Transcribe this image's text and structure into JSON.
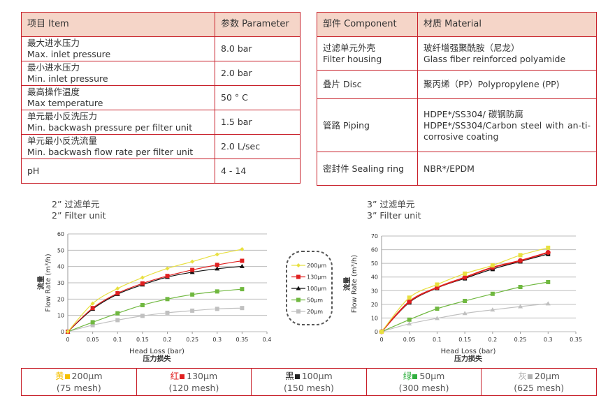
{
  "spec_table": {
    "headers": [
      "项目 Item",
      "参数 Parameter"
    ],
    "rows": [
      {
        "zh": "最大进水压力",
        "en": "Max. inlet pressure",
        "value": "8.0 bar"
      },
      {
        "zh": "最小进水压力",
        "en": "Min. inlet pressure",
        "value": "2.0 bar"
      },
      {
        "zh": "最高操作温度",
        "en": "Max temperature",
        "value": "50 ° C"
      },
      {
        "zh": "单元最小反洗压力",
        "en": "Min. backwash pressure per filter unit",
        "value": "1.5 bar"
      },
      {
        "zh": "单元最小反洗流量",
        "en": "Min. backwash flow rate per filter unit",
        "value": "2.0 L/sec"
      },
      {
        "zh": "",
        "en": "pH",
        "value": "4 - 14"
      }
    ]
  },
  "material_table": {
    "headers": [
      "部件 Component",
      "材质 Material"
    ],
    "rows": [
      {
        "component": [
          "过滤单元外壳",
          "Filter housing"
        ],
        "material": [
          "玻纤增强聚酰胺（尼龙）",
          "Glass fiber reinforced polyamide"
        ]
      },
      {
        "component": [
          "叠片 Disc"
        ],
        "material": [
          "聚丙烯（PP）Polypropylene (PP)"
        ]
      },
      {
        "component": [
          "管路 Piping"
        ],
        "material": [
          "HDPE*/SS304/ 碳钢防腐",
          "HDPE*/SS304/Carbon steel with an-ti-corrosive coating"
        ]
      },
      {
        "component": [
          "密封件 Sealing ring"
        ],
        "material": [
          "NBR*/EPDM"
        ]
      }
    ]
  },
  "legend": {
    "items": [
      "200μm",
      "130μm",
      "100μm",
      "50μm",
      "20μm"
    ],
    "colors": [
      "#e8e040",
      "#e02020",
      "#111111",
      "#70b840",
      "#c0c0c0"
    ]
  },
  "chart_data": [
    {
      "type": "line",
      "title_zh": "2” 过滤单元",
      "title_en": "2” Filter unit",
      "ylabel_zh": "流量",
      "ylabel_en": "Flow Rate (m³/h)",
      "xlabel_en": "Head Loss (bar)",
      "xlabel_zh": "压力损失",
      "xlim": [
        0,
        0.4
      ],
      "ylim": [
        0,
        60
      ],
      "xticks": [
        0,
        0.05,
        0.1,
        0.15,
        0.2,
        0.25,
        0.3,
        0.35,
        0.4
      ],
      "yticks": [
        0,
        10,
        20,
        30,
        40,
        50,
        60
      ],
      "grid": "horizontal",
      "x": [
        0,
        0.05,
        0.1,
        0.15,
        0.2,
        0.25,
        0.3,
        0.35
      ],
      "series": [
        {
          "name": "200μm",
          "color": "#e8e040",
          "marker": "diamond",
          "values": [
            0,
            17.3,
            26.5,
            33.2,
            38.8,
            43,
            47.4,
            50.6
          ]
        },
        {
          "name": "130μm",
          "color": "#e02020",
          "marker": "square",
          "values": [
            0,
            14.5,
            23.6,
            29.6,
            34.2,
            37.9,
            41,
            43.5
          ]
        },
        {
          "name": "100μm",
          "color": "#111111",
          "marker": "triangle",
          "values": [
            0,
            13.9,
            23,
            28.8,
            33.5,
            36.5,
            38.6,
            40.1
          ]
        },
        {
          "name": "50μm",
          "color": "#70b840",
          "marker": "square",
          "values": [
            0,
            5.8,
            11.3,
            16.3,
            20,
            22.8,
            24.7,
            26.1
          ]
        },
        {
          "name": "20μm",
          "color": "#c0c0c0",
          "marker": "square",
          "values": [
            0,
            4,
            7.1,
            9.7,
            11.6,
            12.9,
            14,
            14.5
          ]
        }
      ]
    },
    {
      "type": "line",
      "title_zh": "3” 过滤单元",
      "title_en": "3” Filter unit",
      "ylabel_zh": "流量",
      "ylabel_en": "Flow Rate (m³/h)",
      "xlabel_en": "Head Loss (bar)",
      "xlabel_zh": "压力损失",
      "xlim": [
        0,
        0.35
      ],
      "ylim": [
        0,
        70
      ],
      "xticks": [
        0,
        0.05,
        0.1,
        0.15,
        0.2,
        0.25,
        0.3,
        0.35
      ],
      "yticks": [
        0,
        10,
        20,
        30,
        40,
        50,
        60,
        70
      ],
      "grid": "horizontal",
      "x": [
        0,
        0.05,
        0.1,
        0.15,
        0.2,
        0.25,
        0.3
      ],
      "series": [
        {
          "name": "200μm",
          "color": "#e8e040",
          "marker": "square",
          "values": [
            0,
            24.9,
            34.5,
            42.5,
            48.5,
            56,
            61.4
          ]
        },
        {
          "name": "130μm",
          "color": "#e02020",
          "marker": "circle",
          "values": [
            0,
            22,
            32.3,
            39.7,
            47,
            52,
            58
          ]
        },
        {
          "name": "100μm",
          "color": "#111111",
          "marker": "square",
          "values": [
            0,
            21.4,
            32,
            39,
            45.8,
            51.4,
            56.8
          ]
        },
        {
          "name": "50μm",
          "color": "#70b840",
          "marker": "square",
          "values": [
            0,
            8.8,
            16.8,
            22.5,
            27.7,
            32.7,
            36.3
          ]
        },
        {
          "name": "20μm",
          "color": "#c0c0c0",
          "marker": "triangle",
          "values": [
            0,
            5.8,
            9.8,
            13.4,
            16,
            18.4,
            20.5
          ]
        }
      ]
    }
  ],
  "mesh_table": [
    {
      "color_zh": "黄",
      "color": "#f5c000",
      "size": "200μm",
      "mesh": "(75 mesh)"
    },
    {
      "color_zh": "红",
      "color": "#e02020",
      "size": "130μm",
      "mesh": "(120 mesh)"
    },
    {
      "color_zh": "黑",
      "color": "#222222",
      "size": "100μm",
      "mesh": "(150 mesh)"
    },
    {
      "color_zh": "绿",
      "color": "#30b040",
      "size": "50μm",
      "mesh": "(300 mesh)"
    },
    {
      "color_zh": "灰",
      "color": "#b0b0b0",
      "size": "20μm",
      "mesh": "(625 mesh)"
    }
  ]
}
